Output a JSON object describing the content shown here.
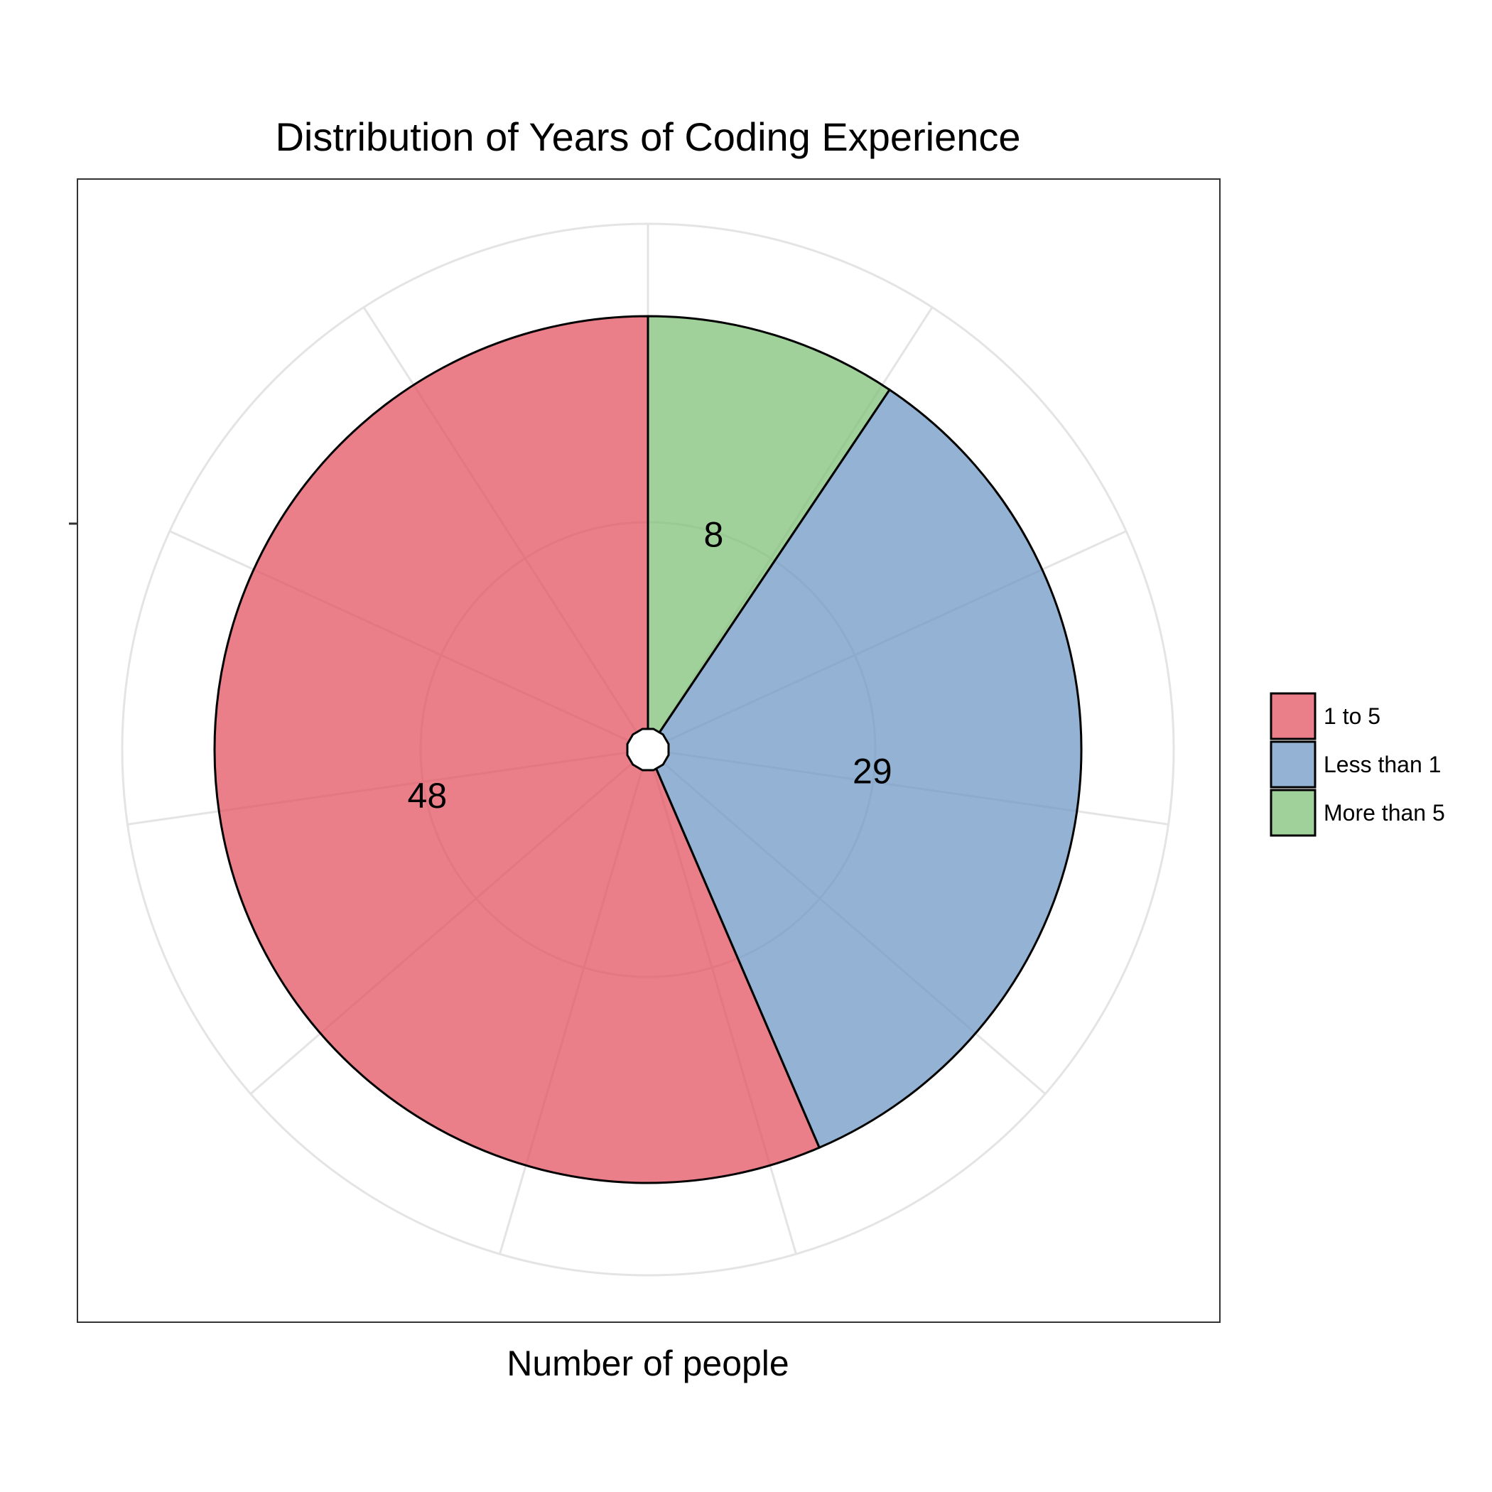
{
  "chart_data": {
    "type": "pie",
    "title": "Distribution of Years of Coding Experience",
    "xlabel": "Number of people",
    "categories": [
      "More than 5",
      "Less than 1",
      "1 to 5"
    ],
    "values": [
      8,
      29,
      48
    ],
    "colors": [
      "#7bbf75",
      "#6b96c4",
      "#e34e5c"
    ],
    "legend": {
      "position": "right",
      "entries": [
        {
          "label": "1 to 5",
          "color": "#e34e5c"
        },
        {
          "label": "Less than 1",
          "color": "#6b96c4"
        },
        {
          "label": "More than 5",
          "color": "#7bbf75"
        }
      ]
    },
    "grid": true
  }
}
